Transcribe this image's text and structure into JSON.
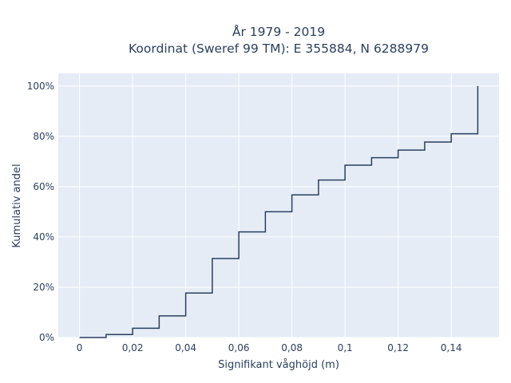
{
  "chart_data": {
    "type": "line",
    "step": "hv",
    "title_line1": "År 1979 - 2019",
    "title_line2": "Koordinat (Sweref 99 TM): E 355884, N 6288979",
    "xlabel": "Signifikant våghöjd (m)",
    "ylabel": "Kumulativ andel",
    "xlim": [
      -0.008,
      0.158
    ],
    "ylim": [
      0,
      1.05
    ],
    "x_ticks": [
      0,
      0.02,
      0.04,
      0.06,
      0.08,
      0.1,
      0.12,
      0.14
    ],
    "x_tick_labels": [
      "0",
      "0,02",
      "0,04",
      "0,06",
      "0,08",
      "0,1",
      "0,12",
      "0,14"
    ],
    "y_ticks": [
      0,
      0.2,
      0.4,
      0.6,
      0.8,
      1.0
    ],
    "y_tick_labels": [
      "0%",
      "20%",
      "40%",
      "60%",
      "80%",
      "100%"
    ],
    "grid": true,
    "background_color": "#e5ecf6",
    "line_color": "#2a3f5f",
    "series": [
      {
        "x": [
          0,
          0.01,
          0.02,
          0.03,
          0.04,
          0.05,
          0.06,
          0.07,
          0.08,
          0.09,
          0.1,
          0.11,
          0.12,
          0.13,
          0.14,
          0.15,
          0.15
        ],
        "y": [
          0,
          0.012,
          0.037,
          0.086,
          0.177,
          0.314,
          0.42,
          0.5,
          0.567,
          0.626,
          0.685,
          0.715,
          0.745,
          0.777,
          0.81,
          0.81,
          1.0
        ]
      }
    ]
  }
}
